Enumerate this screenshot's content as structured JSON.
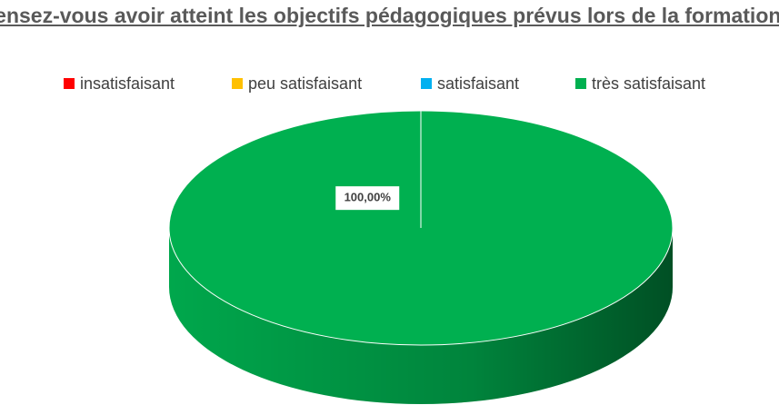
{
  "chart_data": {
    "type": "pie3d",
    "title": "pensez-vous avoir atteint les objectifs pédagogiques prévus lors de la formation ?",
    "categories": [
      "insatisfaisant",
      "peu satisfaisant",
      "satisfaisant",
      "très satisfaisant"
    ],
    "values": [
      0,
      0,
      0,
      100
    ],
    "value_labels": [
      null,
      null,
      null,
      "100,00%"
    ],
    "colors": [
      "#ff0000",
      "#ffc000",
      "#00b0f0",
      "#00b050"
    ],
    "legend": "top"
  }
}
